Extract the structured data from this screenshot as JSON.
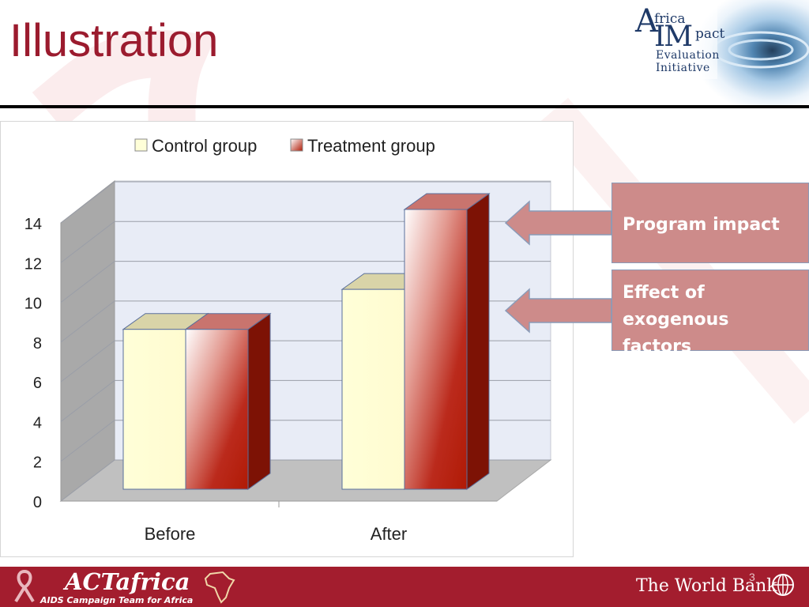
{
  "slide": {
    "title": "Illustration",
    "page_number": "3"
  },
  "logo": {
    "line_a": "A",
    "line_frica": "frica",
    "line_im": "IM",
    "line_pact": "pact",
    "line_evaluation": "Evaluation",
    "line_initiative": "Initiative"
  },
  "callouts": {
    "program_impact": "Program impact",
    "exogenous_line1": "Effect of exogenous",
    "exogenous_line2": "factors"
  },
  "footer": {
    "brand": "ACTafrica",
    "tagline": "AIDS Campaign Team for Africa",
    "world_bank": "The World Bank"
  },
  "colors": {
    "title": "#9b1b2e",
    "control_bar": "#ffffd8",
    "treatment_bar": "#b31b1b",
    "callout": "#cd8b8a",
    "footer": "#a31d2e"
  },
  "chart_data": {
    "type": "bar",
    "style": "3d-clustered-column",
    "categories": [
      "Before",
      "After"
    ],
    "series": [
      {
        "name": "Control group",
        "values": [
          8,
          10
        ],
        "color": "#ffffd8"
      },
      {
        "name": "Treatment group",
        "values": [
          8,
          14
        ],
        "color": "#b31b1b"
      }
    ],
    "y_ticks": [
      "0",
      "2",
      "4",
      "6",
      "8",
      "10",
      "12",
      "14"
    ],
    "ylim": [
      0,
      14
    ],
    "grid": true,
    "legend_position": "top"
  }
}
